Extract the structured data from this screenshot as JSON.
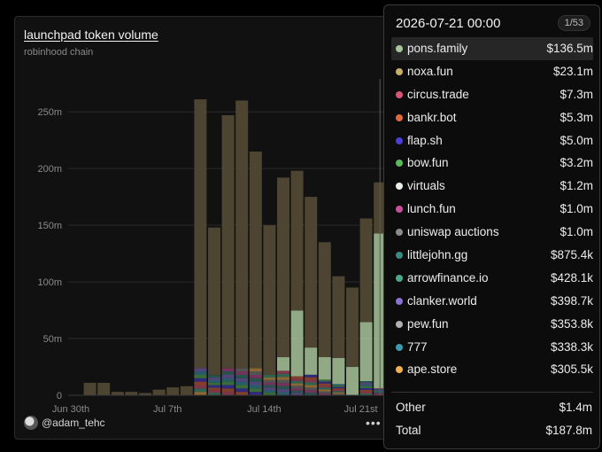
{
  "card": {
    "title": "launchpad token volume",
    "subtitle": "robinhood chain",
    "author": "@adam_tehc",
    "more": "•••"
  },
  "colors": {
    "pons": "#a8c49a",
    "noxa": "#c8b06a",
    "circus": "#d95577",
    "bankr": "#e0683f",
    "flap": "#4a3fd8",
    "bow": "#5cb85c",
    "virtuals": "#e8f0e8",
    "lunch": "#c8509a",
    "uniswap": "#8a8a8a",
    "littlejohn": "#3a8a80",
    "arrow": "#4aaa88",
    "clanker": "#8a70d0",
    "pew": "#b0b0b0",
    "n777": "#3a9ab0",
    "ape": "#f0b050"
  },
  "chart_data": {
    "type": "bar",
    "stacked": true,
    "x_ticks": [
      "Jun 30th",
      "Jul 7th",
      "Jul 14th",
      "Jul 21st"
    ],
    "y_ticks": [
      "0",
      "50m",
      "100m",
      "150m",
      "200m",
      "250m"
    ],
    "ylim": [
      0,
      265
    ],
    "unit": "m",
    "totals": [
      0,
      11,
      11,
      3,
      3,
      2,
      5,
      7,
      8,
      261,
      148,
      247,
      260,
      215,
      150,
      192,
      198,
      175,
      135,
      105,
      95,
      156,
      187.8
    ],
    "pons_family": [
      0,
      0,
      0,
      0,
      0,
      0,
      0,
      0,
      0,
      0,
      0,
      0,
      0,
      0,
      0,
      12,
      58,
      24,
      20,
      23,
      25,
      52,
      136.5
    ],
    "hover_date": "2026-07-21 00:00"
  },
  "tooltip": {
    "date": "2026-07-21 00:00",
    "page": "1/53",
    "items": [
      {
        "name": "pons.family",
        "value": "$136.5m",
        "color": "#a8c49a"
      },
      {
        "name": "noxa.fun",
        "value": "$23.1m",
        "color": "#c8b06a"
      },
      {
        "name": "circus.trade",
        "value": "$7.3m",
        "color": "#d95577"
      },
      {
        "name": "bankr.bot",
        "value": "$5.3m",
        "color": "#e0683f"
      },
      {
        "name": "flap.sh",
        "value": "$5.0m",
        "color": "#4a3fd8"
      },
      {
        "name": "bow.fun",
        "value": "$3.2m",
        "color": "#5cb85c"
      },
      {
        "name": "virtuals",
        "value": "$1.2m",
        "color": "#e8f0e8"
      },
      {
        "name": "lunch.fun",
        "value": "$1.0m",
        "color": "#c8509a"
      },
      {
        "name": "uniswap auctions",
        "value": "$1.0m",
        "color": "#8a8a8a"
      },
      {
        "name": "littlejohn.gg",
        "value": "$875.4k",
        "color": "#3a8a80"
      },
      {
        "name": "arrowfinance.io",
        "value": "$428.1k",
        "color": "#4aaa88"
      },
      {
        "name": "clanker.world",
        "value": "$398.7k",
        "color": "#8a70d0"
      },
      {
        "name": "pew.fun",
        "value": "$353.8k",
        "color": "#b0b0b0"
      },
      {
        "name": "777",
        "value": "$338.3k",
        "color": "#3a9ab0"
      },
      {
        "name": "ape.store",
        "value": "$305.5k",
        "color": "#f0b050"
      }
    ],
    "other_label": "Other",
    "other_value": "$1.4m",
    "total_label": "Total",
    "total_value": "$187.8m"
  }
}
